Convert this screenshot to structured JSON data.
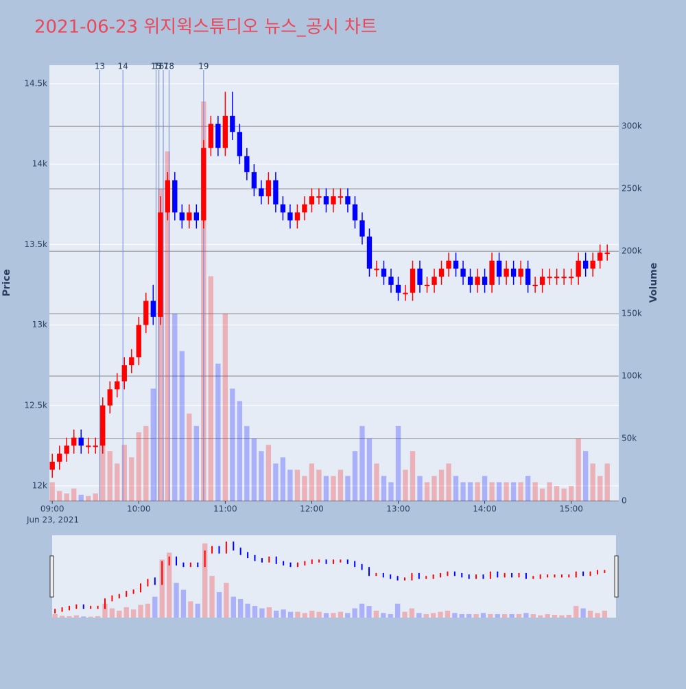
{
  "chart_data": {
    "type": "candlestick",
    "title": "2021-06-23 위지윅스튜디오 뉴스_공시 차트",
    "y_label": "Price",
    "y2_label": "Volume",
    "x_date_label": "Jun 23, 2021",
    "up_color": "#ff0000",
    "down_color": "#0000ff",
    "x": [
      "09:00",
      "09:05",
      "09:10",
      "09:15",
      "09:20",
      "09:25",
      "09:30",
      "09:35",
      "09:40",
      "09:45",
      "09:50",
      "09:55",
      "10:00",
      "10:05",
      "10:10",
      "10:15",
      "10:20",
      "10:25",
      "10:30",
      "10:35",
      "10:40",
      "10:45",
      "10:50",
      "10:55",
      "11:00",
      "11:05",
      "11:10",
      "11:15",
      "11:20",
      "11:25",
      "11:30",
      "11:35",
      "11:40",
      "11:45",
      "11:50",
      "11:55",
      "12:00",
      "12:05",
      "12:10",
      "12:15",
      "12:20",
      "12:25",
      "12:30",
      "12:35",
      "12:40",
      "12:45",
      "12:50",
      "12:55",
      "13:00",
      "13:05",
      "13:10",
      "13:15",
      "13:20",
      "13:25",
      "13:30",
      "13:35",
      "13:40",
      "13:45",
      "13:50",
      "13:55",
      "14:00",
      "14:05",
      "14:10",
      "14:15",
      "14:20",
      "14:25",
      "14:30",
      "14:35",
      "14:40",
      "14:45",
      "14:50",
      "14:55",
      "15:00",
      "15:05",
      "15:10",
      "15:15",
      "15:20",
      "15:25"
    ],
    "open": [
      12100,
      12150,
      12200,
      12250,
      12300,
      12250,
      12250,
      12250,
      12500,
      12600,
      12650,
      12750,
      12800,
      13000,
      13150,
      13050,
      13700,
      13900,
      13700,
      13650,
      13700,
      13650,
      14100,
      14250,
      14100,
      14300,
      14200,
      14050,
      13950,
      13850,
      13800,
      13900,
      13750,
      13700,
      13650,
      13700,
      13750,
      13800,
      13800,
      13750,
      13800,
      13800,
      13750,
      13650,
      13550,
      13350,
      13350,
      13300,
      13250,
      13200,
      13200,
      13350,
      13250,
      13250,
      13300,
      13350,
      13400,
      13350,
      13300,
      13250,
      13300,
      13250,
      13400,
      13300,
      13350,
      13300,
      13350,
      13250,
      13250,
      13300,
      13300,
      13300,
      13300,
      13300,
      13400,
      13350,
      13400,
      13450
    ],
    "high": [
      12200,
      12250,
      12300,
      12350,
      12350,
      12300,
      12300,
      12550,
      12650,
      12700,
      12800,
      12850,
      13050,
      13200,
      13250,
      13800,
      13950,
      13950,
      13750,
      13750,
      13750,
      14150,
      14300,
      14300,
      14450,
      14450,
      14250,
      14100,
      14000,
      13900,
      13950,
      13950,
      13800,
      13750,
      13750,
      13800,
      13850,
      13850,
      13850,
      13850,
      13850,
      13850,
      13800,
      13700,
      13600,
      13400,
      13400,
      13350,
      13300,
      13250,
      13400,
      13400,
      13300,
      13350,
      13400,
      13450,
      13450,
      13400,
      13350,
      13350,
      13350,
      13450,
      13450,
      13400,
      13400,
      13400,
      13400,
      13300,
      13350,
      13350,
      13350,
      13350,
      13350,
      13450,
      13450,
      13450,
      13500,
      13500
    ],
    "low": [
      12050,
      12100,
      12150,
      12200,
      12200,
      12200,
      12200,
      12200,
      12450,
      12550,
      12600,
      12700,
      12750,
      12950,
      13000,
      13000,
      13650,
      13650,
      13600,
      13600,
      13600,
      13600,
      14050,
      14050,
      14050,
      14150,
      14000,
      13900,
      13800,
      13750,
      13750,
      13700,
      13650,
      13600,
      13600,
      13650,
      13700,
      13750,
      13700,
      13700,
      13750,
      13700,
      13600,
      13500,
      13300,
      13300,
      13250,
      13200,
      13150,
      13150,
      13150,
      13200,
      13200,
      13200,
      13250,
      13300,
      13300,
      13250,
      13200,
      13200,
      13200,
      13200,
      13250,
      13250,
      13250,
      13250,
      13200,
      13200,
      13200,
      13250,
      13250,
      13250,
      13250,
      13250,
      13300,
      13300,
      13350,
      13400
    ],
    "close": [
      12150,
      12200,
      12250,
      12300,
      12250,
      12250,
      12250,
      12500,
      12600,
      12650,
      12750,
      12800,
      13000,
      13150,
      13050,
      13700,
      13900,
      13700,
      13650,
      13700,
      13650,
      14100,
      14250,
      14100,
      14300,
      14200,
      14050,
      13950,
      13850,
      13800,
      13900,
      13750,
      13700,
      13650,
      13700,
      13750,
      13800,
      13800,
      13750,
      13800,
      13800,
      13750,
      13650,
      13550,
      13350,
      13350,
      13300,
      13250,
      13200,
      13200,
      13350,
      13250,
      13250,
      13300,
      13350,
      13400,
      13350,
      13300,
      13250,
      13300,
      13250,
      13400,
      13300,
      13350,
      13300,
      13350,
      13250,
      13250,
      13300,
      13300,
      13300,
      13300,
      13300,
      13400,
      13350,
      13400,
      13450,
      13450
    ],
    "volume": [
      15000,
      8000,
      6000,
      10000,
      5000,
      4000,
      6000,
      60000,
      40000,
      30000,
      45000,
      35000,
      55000,
      60000,
      90000,
      250000,
      280000,
      150000,
      120000,
      70000,
      60000,
      320000,
      180000,
      110000,
      150000,
      90000,
      80000,
      60000,
      50000,
      40000,
      45000,
      30000,
      35000,
      25000,
      25000,
      20000,
      30000,
      25000,
      20000,
      20000,
      25000,
      20000,
      40000,
      60000,
      50000,
      30000,
      20000,
      15000,
      60000,
      25000,
      40000,
      20000,
      15000,
      20000,
      25000,
      30000,
      20000,
      15000,
      15000,
      15000,
      20000,
      15000,
      15000,
      15000,
      15000,
      15000,
      20000,
      15000,
      10000,
      15000,
      12000,
      10000,
      12000,
      50000,
      40000,
      30000,
      20000,
      30000
    ],
    "events": [
      {
        "label": "13",
        "x": "09:33"
      },
      {
        "label": "14",
        "x": "09:49"
      },
      {
        "label": "15",
        "x": "10:12"
      },
      {
        "label": "16",
        "x": "10:14"
      },
      {
        "label": "17",
        "x": "10:17"
      },
      {
        "label": "18",
        "x": "10:21"
      },
      {
        "label": "19",
        "x": "10:45"
      }
    ],
    "xlim": [
      "08:58",
      "15:33"
    ],
    "xticks": [
      "09:00",
      "10:00",
      "11:00",
      "12:00",
      "13:00",
      "14:00",
      "15:00"
    ],
    "ylim": [
      11906,
      14615
    ],
    "yticks": [
      {
        "value": 12000,
        "label": "12k"
      },
      {
        "value": 12500,
        "label": "12.5k"
      },
      {
        "value": 13000,
        "label": "13k"
      },
      {
        "value": 13500,
        "label": "13.5k"
      },
      {
        "value": 14000,
        "label": "14k"
      },
      {
        "value": 14500,
        "label": "14.5k"
      }
    ],
    "y2lim": [
      0,
      349000
    ],
    "y2ticks": [
      0,
      {
        "value": 50000,
        "label": "50k"
      },
      {
        "value": 100000,
        "label": "100k"
      },
      {
        "value": 150000,
        "label": "150k"
      },
      {
        "value": 200000,
        "label": "200k"
      },
      {
        "value": 250000,
        "label": "250k"
      },
      {
        "value": 300000,
        "label": "300k"
      }
    ],
    "grid": true,
    "rangeslider": true
  }
}
